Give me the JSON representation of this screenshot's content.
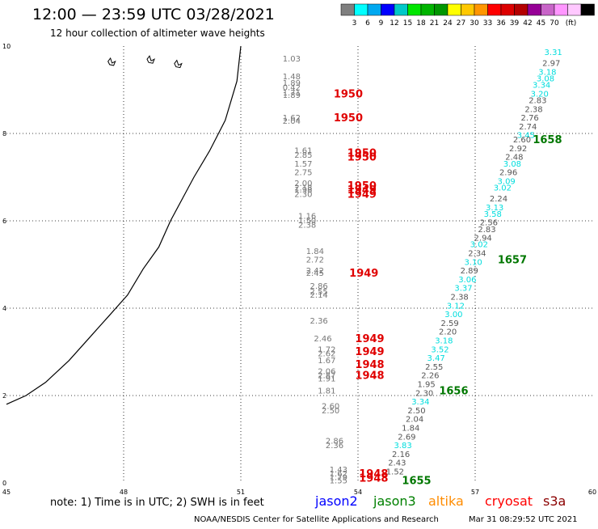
{
  "header": {
    "title": "12:00 — 23:59 UTC 03/28/2021",
    "subtitle": "12 hour collection of altimeter wave heights"
  },
  "colorbar": {
    "colors": [
      "#7f7f7f",
      "#00ffff",
      "#00a8f0",
      "#0000ff",
      "#00c8c8",
      "#00e600",
      "#00b400",
      "#009600",
      "#ffff00",
      "#ffc800",
      "#ff9600",
      "#ff0000",
      "#dc0000",
      "#b40000",
      "#960096",
      "#c864c8",
      "#ff96ff",
      "#ffc8ff",
      "#000000"
    ],
    "labels": [
      "3",
      "6",
      "9",
      "12",
      "15",
      "18",
      "21",
      "24",
      "27",
      "30",
      "33",
      "36",
      "39",
      "42",
      "45",
      "70",
      "(ft)"
    ]
  },
  "footer": {
    "note": "note:  1) Time is in UTC; 2) SWH is in feet",
    "credit": "NOAA/NESDIS Center for Satellite Applications and Research",
    "timestamp": "Mar 31 08:29:52 UTC 2021",
    "satellites": [
      {
        "name": "jason2",
        "color": "#0000ff"
      },
      {
        "name": "jason3",
        "color": "#008000"
      },
      {
        "name": "altika",
        "color": "#ff8c00"
      },
      {
        "name": "cryosat",
        "color": "#ff0000"
      },
      {
        "name": "s3a",
        "color": "#8b0000"
      }
    ]
  },
  "chart_data": {
    "type": "scatter",
    "title": "12:00 — 23:59 UTC 03/28/2021",
    "subtitle": "12 hour collection of altimeter wave heights",
    "xlim": [
      45,
      60
    ],
    "ylim": [
      0,
      10
    ],
    "xticks": [
      "45",
      "48",
      "51",
      "54",
      "57",
      "60"
    ],
    "yticks": [
      "0",
      "2",
      "4",
      "6",
      "8",
      "10"
    ],
    "grid": true,
    "coastline": [
      [
        51,
        10
      ],
      [
        50.9,
        9.2
      ],
      [
        50.6,
        8.3
      ],
      [
        50.2,
        7.6
      ],
      [
        49.8,
        7.0
      ],
      [
        49.5,
        6.5
      ],
      [
        49.2,
        6.0
      ],
      [
        48.9,
        5.4
      ],
      [
        48.5,
        4.9
      ],
      [
        48.1,
        4.3
      ],
      [
        47.6,
        3.8
      ],
      [
        47.1,
        3.3
      ],
      [
        46.6,
        2.8
      ],
      [
        46.0,
        2.3
      ],
      [
        45.5,
        2.0
      ],
      [
        45,
        1.8
      ]
    ],
    "islands": [
      [
        47.6,
        9.65
      ],
      [
        48.6,
        9.7
      ],
      [
        49.3,
        9.6
      ]
    ],
    "series": [
      {
        "name": "cryosat",
        "color_tag": "cryosat",
        "points": [
          {
            "x": 52.3,
            "y": 9.7,
            "v": "1.03"
          },
          {
            "x": 52.3,
            "y": 9.3,
            "v": "1.48"
          },
          {
            "x": 52.3,
            "y": 9.15,
            "v": "1.89"
          },
          {
            "x": 52.3,
            "y": 9.05,
            "v": "0.42"
          },
          {
            "x": 52.3,
            "y": 8.93,
            "v": "1.71"
          },
          {
            "x": 52.3,
            "y": 8.87,
            "v": "1.89"
          },
          {
            "x": 52.3,
            "y": 8.35,
            "v": "1.62"
          },
          {
            "x": 52.3,
            "y": 8.28,
            "v": "2.04"
          },
          {
            "x": 52.6,
            "y": 7.6,
            "v": "1.61"
          },
          {
            "x": 52.6,
            "y": 7.5,
            "v": "2.85"
          },
          {
            "x": 52.6,
            "y": 7.3,
            "v": "1.57"
          },
          {
            "x": 52.6,
            "y": 7.1,
            "v": "2.75"
          },
          {
            "x": 52.6,
            "y": 6.85,
            "v": "2.00"
          },
          {
            "x": 52.6,
            "y": 6.75,
            "v": "2.18"
          },
          {
            "x": 52.6,
            "y": 6.7,
            "v": "1.98"
          },
          {
            "x": 52.6,
            "y": 6.6,
            "v": "2.30"
          },
          {
            "x": 52.7,
            "y": 6.1,
            "v": "1.16"
          },
          {
            "x": 52.7,
            "y": 6.0,
            "v": "1.50"
          },
          {
            "x": 52.7,
            "y": 5.9,
            "v": "2.38"
          },
          {
            "x": 52.9,
            "y": 5.3,
            "v": "1.84"
          },
          {
            "x": 52.9,
            "y": 5.1,
            "v": "2.72"
          },
          {
            "x": 52.9,
            "y": 4.85,
            "v": "2.42"
          },
          {
            "x": 52.9,
            "y": 4.8,
            "v": "2.45"
          },
          {
            "x": 53.0,
            "y": 4.5,
            "v": "2.86"
          },
          {
            "x": 53.0,
            "y": 4.37,
            "v": "2.55"
          },
          {
            "x": 53.0,
            "y": 4.3,
            "v": "2.14"
          },
          {
            "x": 53.0,
            "y": 3.7,
            "v": "2.36"
          },
          {
            "x": 53.1,
            "y": 3.3,
            "v": "2.46"
          },
          {
            "x": 53.2,
            "y": 3.05,
            "v": "1.72"
          },
          {
            "x": 53.2,
            "y": 2.95,
            "v": "2.62"
          },
          {
            "x": 53.2,
            "y": 2.8,
            "v": "1.67"
          },
          {
            "x": 53.2,
            "y": 2.55,
            "v": "2.06"
          },
          {
            "x": 53.2,
            "y": 2.45,
            "v": "2.87"
          },
          {
            "x": 53.2,
            "y": 2.38,
            "v": "1.91"
          },
          {
            "x": 53.2,
            "y": 2.1,
            "v": "1.81"
          },
          {
            "x": 53.3,
            "y": 1.75,
            "v": "2.60"
          },
          {
            "x": 53.3,
            "y": 1.65,
            "v": "2.50"
          },
          {
            "x": 53.4,
            "y": 0.95,
            "v": "2.86"
          },
          {
            "x": 53.4,
            "y": 0.85,
            "v": "2.36"
          },
          {
            "x": 53.5,
            "y": 0.3,
            "v": "1.43"
          },
          {
            "x": 53.5,
            "y": 0.2,
            "v": "1.62"
          },
          {
            "x": 53.5,
            "y": 0.12,
            "v": "1.79"
          },
          {
            "x": 53.5,
            "y": 0.05,
            "v": "1.55"
          }
        ]
      },
      {
        "name": "jason3",
        "color_tag": "jason3",
        "points": [
          {
            "x": 59.0,
            "y": 9.85,
            "v": "3.31"
          },
          {
            "x": 58.95,
            "y": 9.6,
            "v": "2.97"
          },
          {
            "x": 58.85,
            "y": 9.4,
            "v": "3.18"
          },
          {
            "x": 58.8,
            "y": 9.25,
            "v": "3.08"
          },
          {
            "x": 58.7,
            "y": 9.1,
            "v": "3.34"
          },
          {
            "x": 58.65,
            "y": 8.9,
            "v": "3.20"
          },
          {
            "x": 58.6,
            "y": 8.75,
            "v": "2.83"
          },
          {
            "x": 58.5,
            "y": 8.55,
            "v": "2.38"
          },
          {
            "x": 58.4,
            "y": 8.35,
            "v": "2.76"
          },
          {
            "x": 58.35,
            "y": 8.15,
            "v": "2.74"
          },
          {
            "x": 58.3,
            "y": 7.95,
            "v": "3.45"
          },
          {
            "x": 58.2,
            "y": 7.85,
            "v": "2.60"
          },
          {
            "x": 58.1,
            "y": 7.65,
            "v": "2.92"
          },
          {
            "x": 58.0,
            "y": 7.45,
            "v": "2.48"
          },
          {
            "x": 57.95,
            "y": 7.3,
            "v": "3.08"
          },
          {
            "x": 57.85,
            "y": 7.1,
            "v": "2.96"
          },
          {
            "x": 57.8,
            "y": 6.9,
            "v": "3.09"
          },
          {
            "x": 57.7,
            "y": 6.75,
            "v": "3.02"
          },
          {
            "x": 57.6,
            "y": 6.5,
            "v": "2.24"
          },
          {
            "x": 57.5,
            "y": 6.3,
            "v": "3.13"
          },
          {
            "x": 57.45,
            "y": 6.15,
            "v": "3.58"
          },
          {
            "x": 57.35,
            "y": 5.95,
            "v": "2.56"
          },
          {
            "x": 57.3,
            "y": 5.8,
            "v": "2.83"
          },
          {
            "x": 57.2,
            "y": 5.6,
            "v": "2.94"
          },
          {
            "x": 57.1,
            "y": 5.45,
            "v": "3.02"
          },
          {
            "x": 57.05,
            "y": 5.25,
            "v": "2.34"
          },
          {
            "x": 56.95,
            "y": 5.05,
            "v": "3.10"
          },
          {
            "x": 56.85,
            "y": 4.85,
            "v": "2.89"
          },
          {
            "x": 56.8,
            "y": 4.65,
            "v": "3.06"
          },
          {
            "x": 56.7,
            "y": 4.45,
            "v": "3.37"
          },
          {
            "x": 56.6,
            "y": 4.25,
            "v": "2.38"
          },
          {
            "x": 56.5,
            "y": 4.05,
            "v": "3.12"
          },
          {
            "x": 56.45,
            "y": 3.85,
            "v": "3.00"
          },
          {
            "x": 56.35,
            "y": 3.65,
            "v": "2.59"
          },
          {
            "x": 56.3,
            "y": 3.45,
            "v": "2.20"
          },
          {
            "x": 56.2,
            "y": 3.25,
            "v": "3.18"
          },
          {
            "x": 56.1,
            "y": 3.05,
            "v": "3.52"
          },
          {
            "x": 56.0,
            "y": 2.85,
            "v": "3.47"
          },
          {
            "x": 55.95,
            "y": 2.65,
            "v": "2.55"
          },
          {
            "x": 55.85,
            "y": 2.45,
            "v": "2.26"
          },
          {
            "x": 55.75,
            "y": 2.25,
            "v": "1.95"
          },
          {
            "x": 55.7,
            "y": 2.05,
            "v": "2.30"
          },
          {
            "x": 55.6,
            "y": 1.85,
            "v": "3.34"
          },
          {
            "x": 55.5,
            "y": 1.65,
            "v": "2.50"
          },
          {
            "x": 55.45,
            "y": 1.45,
            "v": "2.04"
          },
          {
            "x": 55.35,
            "y": 1.25,
            "v": "1.84"
          },
          {
            "x": 55.25,
            "y": 1.05,
            "v": "2.69"
          },
          {
            "x": 55.15,
            "y": 0.85,
            "v": "3.83"
          },
          {
            "x": 55.1,
            "y": 0.65,
            "v": "2.16"
          },
          {
            "x": 55.0,
            "y": 0.45,
            "v": "2.43"
          },
          {
            "x": 54.95,
            "y": 0.25,
            "v": "1.52"
          }
        ]
      }
    ],
    "time_labels": [
      {
        "x": 53.75,
        "y": 8.9,
        "v": "1950",
        "sat": "cryosat"
      },
      {
        "x": 53.75,
        "y": 8.35,
        "v": "1950",
        "sat": "cryosat"
      },
      {
        "x": 54.1,
        "y": 7.55,
        "v": "1950",
        "sat": "cryosat"
      },
      {
        "x": 54.1,
        "y": 7.45,
        "v": "1950",
        "sat": "cryosat"
      },
      {
        "x": 54.1,
        "y": 6.8,
        "v": "1950",
        "sat": "cryosat"
      },
      {
        "x": 54.1,
        "y": 6.7,
        "v": "1949",
        "sat": "cryosat"
      },
      {
        "x": 54.1,
        "y": 6.6,
        "v": "1949",
        "sat": "cryosat"
      },
      {
        "x": 54.15,
        "y": 4.8,
        "v": "1949",
        "sat": "cryosat"
      },
      {
        "x": 54.3,
        "y": 3.3,
        "v": "1949",
        "sat": "cryosat"
      },
      {
        "x": 54.3,
        "y": 3.0,
        "v": "1949",
        "sat": "cryosat"
      },
      {
        "x": 54.3,
        "y": 2.7,
        "v": "1948",
        "sat": "cryosat"
      },
      {
        "x": 54.3,
        "y": 2.45,
        "v": "1948",
        "sat": "cryosat"
      },
      {
        "x": 54.4,
        "y": 0.2,
        "v": "1948",
        "sat": "cryosat"
      },
      {
        "x": 54.4,
        "y": 0.1,
        "v": "1948",
        "sat": "cryosat"
      },
      {
        "x": 58.85,
        "y": 7.85,
        "v": "1658",
        "sat": "jason3"
      },
      {
        "x": 57.95,
        "y": 5.1,
        "v": "1657",
        "sat": "jason3"
      },
      {
        "x": 56.45,
        "y": 2.1,
        "v": "1656",
        "sat": "jason3"
      },
      {
        "x": 55.5,
        "y": 0.05,
        "v": "1655",
        "sat": "jason3"
      }
    ],
    "value_colors": {
      "cryosat_gray": "#777777",
      "cryosat_cyan": "#00cccc",
      "jason3_gray": "#555555",
      "jason3_cyan": "#00dddd",
      "time_cryosat": "#e00000",
      "time_jason3": "#007700"
    }
  }
}
